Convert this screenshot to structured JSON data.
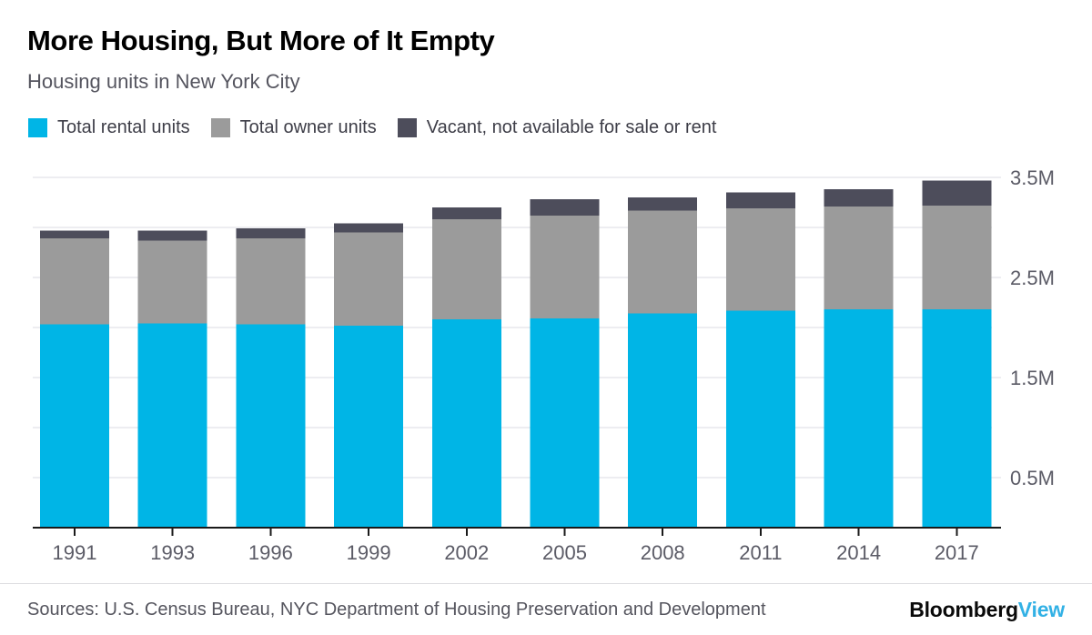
{
  "chart_data": {
    "type": "bar",
    "stacked": true,
    "title": "More Housing, But More of It Empty",
    "subtitle": "Housing units in New York City",
    "unit": "millions of housing units",
    "legend_position": "top",
    "grid": true,
    "categories": [
      "1991",
      "1993",
      "1996",
      "1999",
      "2002",
      "2005",
      "2008",
      "2011",
      "2014",
      "2017"
    ],
    "series": [
      {
        "name": "Total rental units",
        "color": "#00b5e6",
        "values": [
          2.03,
          2.04,
          2.03,
          2.02,
          2.08,
          2.09,
          2.14,
          2.17,
          2.18,
          2.18
        ]
      },
      {
        "name": "Total owner units",
        "color": "#9b9b9b",
        "values": [
          0.86,
          0.83,
          0.86,
          0.93,
          1.0,
          1.03,
          1.03,
          1.02,
          1.03,
          1.04
        ]
      },
      {
        "name": "Vacant, not available for sale or rent",
        "color": "#4d4d5b",
        "values": [
          0.08,
          0.1,
          0.1,
          0.09,
          0.12,
          0.16,
          0.13,
          0.16,
          0.17,
          0.25
        ]
      }
    ],
    "yaxis": {
      "lim": [
        0,
        3.5
      ],
      "side": "right",
      "gridlines": [
        0.5,
        1.0,
        1.5,
        2.0,
        2.5,
        3.0,
        3.5
      ],
      "ticks": [
        {
          "value": 0.5,
          "label": "0.5M"
        },
        {
          "value": 1.5,
          "label": "1.5M"
        },
        {
          "value": 2.5,
          "label": "2.5M"
        },
        {
          "value": 3.5,
          "label": "3.5M"
        }
      ]
    }
  },
  "footer": {
    "sources": "Sources: U.S. Census Bureau, NYC Department of Housing Preservation and Development",
    "brand_first": "Bloomberg",
    "brand_second": "View",
    "brand_second_color": "#32b1e5"
  },
  "colors": {
    "text_primary": "#000000",
    "text_secondary": "#55555f",
    "axis_label": "#5b5b66",
    "gridline": "#ededf1",
    "axis_line": "#1a1a1a",
    "background": "#ffffff"
  }
}
